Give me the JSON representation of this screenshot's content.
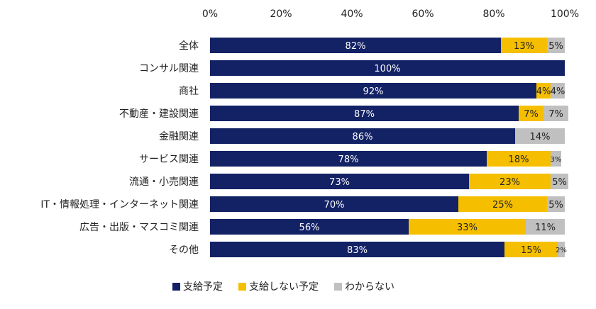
{
  "chart_data": {
    "type": "bar",
    "orientation": "horizontal",
    "stacked": true,
    "title": "",
    "xlim": [
      0,
      100
    ],
    "x_ticks": [
      "0%",
      "20%",
      "40%",
      "60%",
      "80%",
      "100%"
    ],
    "categories": [
      "全体",
      "コンサル関連",
      "商社",
      "不動産・建設関連",
      "金融関連",
      "サービス関連",
      "流通・小売関連",
      "IT・情報処理・インターネット関連",
      "広告・出版・マスコミ関連",
      "その他"
    ],
    "series": [
      {
        "name": "支給予定",
        "color": "#132165",
        "label_color": "#ffffff",
        "values": [
          82,
          100,
          92,
          87,
          86,
          78,
          73,
          70,
          56,
          83
        ],
        "labels": [
          "82%",
          "100%",
          "92%",
          "87%",
          "86%",
          "78%",
          "73%",
          "70%",
          "56%",
          "83%"
        ]
      },
      {
        "name": "支給しない予定",
        "color": "#f5bf00",
        "label_color": "#222222",
        "values": [
          13,
          0,
          4,
          7,
          0,
          18,
          23,
          25,
          33,
          15
        ],
        "labels": [
          "13%",
          "",
          "4%",
          "7%",
          "",
          "18%",
          "23%",
          "25%",
          "33%",
          "15%"
        ]
      },
      {
        "name": "わからない",
        "color": "#c0c0c0",
        "label_color": "#222222",
        "values": [
          5,
          0,
          4,
          7,
          14,
          3,
          5,
          5,
          11,
          2
        ],
        "labels": [
          "5%",
          "",
          "4%",
          "7%",
          "14%",
          "3%",
          "5%",
          "5%",
          "11%",
          "2%"
        ]
      }
    ],
    "legend_position": "bottom",
    "grid": false
  }
}
